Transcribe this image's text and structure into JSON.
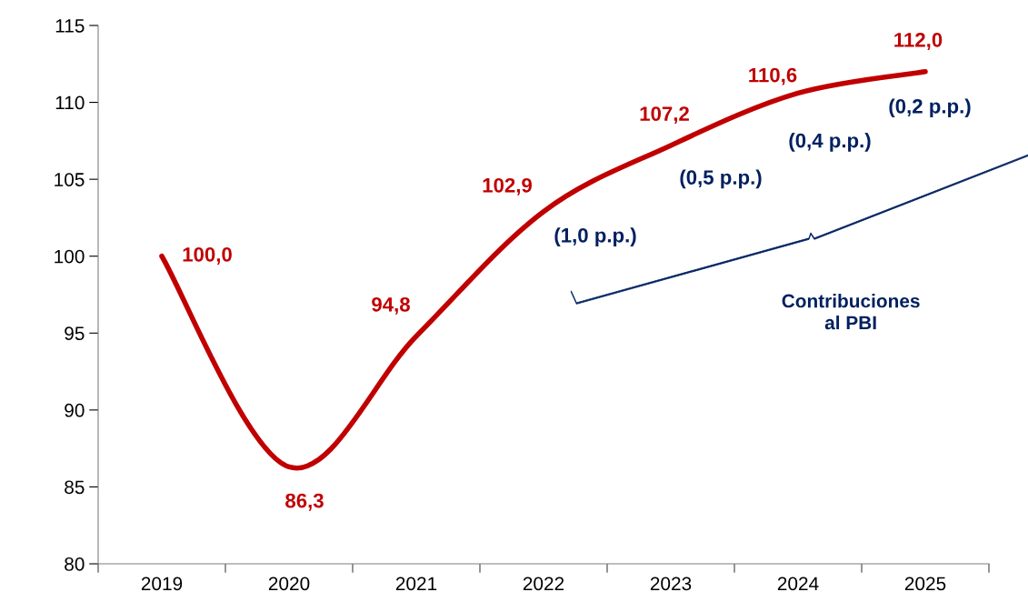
{
  "chart_data": {
    "type": "line",
    "categories": [
      "2019",
      "2020",
      "2021",
      "2022",
      "2023",
      "2024",
      "2025"
    ],
    "series": [
      {
        "color": "#c00000",
        "values": [
          100.0,
          86.3,
          94.8,
          102.9,
          107.2,
          110.6,
          112.0
        ],
        "value_labels": [
          "100,0",
          "86,3",
          "94,8",
          "102,9",
          "107,2",
          "110,6",
          "112,0"
        ]
      }
    ],
    "ylim": [
      80,
      115
    ],
    "yticks": [
      80,
      85,
      90,
      95,
      100,
      105,
      110,
      115
    ],
    "grid": false,
    "marker": "none",
    "line_style": "solid",
    "annotations": [
      {
        "text": "(1,0 p.p.)",
        "x": "2022",
        "y": 102.9
      },
      {
        "text": "(0,5 p.p.)",
        "x": "2023",
        "y": 107.2
      },
      {
        "text": "(0,4 p.p.)",
        "x": "2024",
        "y": 110.6
      },
      {
        "text": "(0,2 p.p.)",
        "x": "2025",
        "y": 112.0
      },
      "Contribuciones\nal PBI"
    ]
  }
}
